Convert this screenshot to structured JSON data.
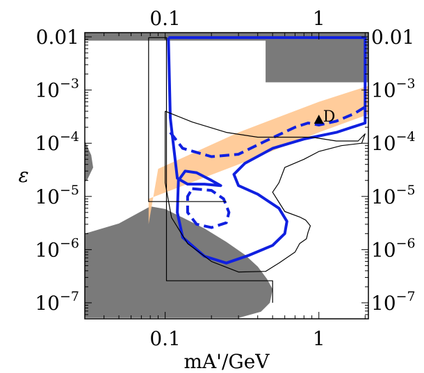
{
  "chart_data": {
    "type": "area",
    "xlabel": "mA'/GeV",
    "ylabel": "ε",
    "x_scale": "log",
    "y_scale": "log",
    "xlim": [
      0.03,
      2.1
    ],
    "ylim": [
      5e-08,
      0.012
    ],
    "x_ticks": [
      {
        "value": 0.1,
        "label": "0.1"
      },
      {
        "value": 1,
        "label": "1"
      }
    ],
    "y_ticks": [
      {
        "value": 0.01,
        "base": "0.01",
        "exp": ""
      },
      {
        "value": 0.001,
        "base": "10",
        "exp": "−3"
      },
      {
        "value": 0.0001,
        "base": "10",
        "exp": "−4"
      },
      {
        "value": 1e-05,
        "base": "10",
        "exp": "−5"
      },
      {
        "value": 1e-06,
        "base": "10",
        "exp": "−6"
      },
      {
        "value": 1e-07,
        "base": "10",
        "exp": "−7"
      }
    ],
    "colors": {
      "excluded": "#7a7a7a",
      "band": "#ffc690",
      "contour": "#1020e0",
      "thin": "#000000"
    },
    "regions": [
      {
        "kind": "excluded",
        "points": [
          [
            0.03,
            0.0085
          ],
          [
            0.03,
            0.012
          ],
          [
            2.1,
            0.012
          ],
          [
            2.1,
            0.0014
          ],
          [
            0.45,
            0.0014
          ],
          [
            0.45,
            0.0085
          ]
        ]
      },
      {
        "kind": "excluded",
        "points": [
          [
            0.03,
            2e-06
          ],
          [
            0.05,
            3.1e-06
          ],
          [
            0.08,
            6.5e-06
          ],
          [
            0.1,
            5.8e-06
          ],
          [
            0.13,
            4e-06
          ],
          [
            0.18,
            2.5e-06
          ],
          [
            0.25,
            1.4e-06
          ],
          [
            0.33,
            8e-07
          ],
          [
            0.4,
            4.8e-07
          ],
          [
            0.46,
            2.8e-07
          ],
          [
            0.5,
            1.8e-07
          ],
          [
            0.48,
            1e-07
          ],
          [
            0.42,
            6.8e-08
          ],
          [
            0.3,
            5.2e-08
          ],
          [
            0.03,
            5.2e-08
          ]
        ]
      },
      {
        "kind": "excluded",
        "points": [
          [
            0.03,
            0.00011
          ],
          [
            0.033,
            6e-05
          ],
          [
            0.034,
            3.5e-05
          ],
          [
            0.031,
            2e-05
          ],
          [
            0.03,
            1.9e-05
          ]
        ]
      }
    ],
    "band": [
      [
        0.078,
        3e-06
      ],
      [
        0.078,
        9e-06
      ],
      [
        0.3,
        4e-05
      ],
      [
        1.0,
        0.00016
      ],
      [
        2.1,
        0.00035
      ],
      [
        2.1,
        0.0012
      ],
      [
        1.0,
        0.0006
      ],
      [
        0.3,
        0.00016
      ],
      [
        0.09,
        3.3e-05
      ]
    ],
    "contours": [
      {
        "style": "solid",
        "width": "thick",
        "points": [
          [
            0.105,
            0.0097
          ],
          [
            2.0,
            0.0097
          ],
          [
            2.0,
            0.00024
          ],
          [
            1.3,
            0.00016
          ],
          [
            0.8,
            0.00012
          ],
          [
            0.5,
            8e-05
          ],
          [
            0.33,
            4.2e-05
          ],
          [
            0.28,
            2.6e-05
          ],
          [
            0.3,
            1.6e-05
          ],
          [
            0.4,
            1.1e-05
          ],
          [
            0.55,
            6e-06
          ],
          [
            0.62,
            3.4e-06
          ],
          [
            0.6,
            2e-06
          ],
          [
            0.5,
            1.2e-06
          ],
          [
            0.35,
            7.8e-07
          ],
          [
            0.25,
            5.6e-07
          ],
          [
            0.18,
            7.5e-07
          ],
          [
            0.13,
            1.7e-06
          ],
          [
            0.12,
            5e-06
          ],
          [
            0.122,
            2e-05
          ],
          [
            0.135,
            3e-05
          ],
          [
            0.16,
            2.8e-05
          ],
          [
            0.2,
            2e-05
          ],
          [
            0.23,
            1.6e-05
          ],
          [
            0.18,
            1.7e-05
          ],
          [
            0.14,
            1.7e-05
          ],
          [
            0.12,
            2.2e-05
          ],
          [
            0.108,
            0.0003
          ],
          [
            0.105,
            0.0097
          ]
        ]
      },
      {
        "style": "dashed",
        "width": "thick",
        "points": [
          [
            0.108,
            0.00016
          ],
          [
            0.13,
            8e-05
          ],
          [
            0.2,
            5.6e-05
          ],
          [
            0.3,
            6.2e-05
          ],
          [
            0.45,
            0.00011
          ],
          [
            0.7,
            0.0002
          ],
          [
            0.85,
            0.00024
          ],
          [
            1.0,
            0.00022
          ],
          [
            1.3,
            0.00026
          ],
          [
            1.7,
            0.00036
          ],
          [
            2.0,
            0.00048
          ]
        ]
      },
      {
        "style": "dashed",
        "width": "thick",
        "points": [
          [
            0.15,
            1.4e-05
          ],
          [
            0.2,
            1.3e-05
          ],
          [
            0.24,
            9e-06
          ],
          [
            0.26,
            5e-06
          ],
          [
            0.25,
            3.2e-06
          ],
          [
            0.2,
            2.6e-06
          ],
          [
            0.16,
            3e-06
          ],
          [
            0.14,
            5e-06
          ],
          [
            0.14,
            1e-05
          ],
          [
            0.15,
            1.4e-05
          ]
        ]
      },
      {
        "style": "solid",
        "width": "thin",
        "points": [
          [
            0.1,
            0.0004
          ],
          [
            0.15,
            0.00025
          ],
          [
            0.25,
            0.00016
          ],
          [
            0.4,
            0.00013
          ],
          [
            0.6,
            0.00013
          ],
          [
            0.9,
            0.00013
          ],
          [
            1.3,
            0.00011
          ],
          [
            1.8,
            0.00011
          ],
          [
            2.0,
            0.00015
          ],
          [
            1.9,
            0.0001
          ],
          [
            1.4,
            9e-05
          ],
          [
            1.0,
            7e-05
          ],
          [
            0.8,
            5e-05
          ],
          [
            0.6,
            3.5e-05
          ],
          [
            0.55,
            1.8e-05
          ],
          [
            0.5,
            1.2e-05
          ],
          [
            0.6,
            5.2e-06
          ],
          [
            0.75,
            4.1e-06
          ],
          [
            0.82,
            3.6e-06
          ],
          [
            0.88,
            2.8e-06
          ],
          [
            0.85,
            2.1e-06
          ],
          [
            0.83,
            1.6e-06
          ],
          [
            0.75,
            1.3e-06
          ],
          [
            0.7,
            9e-07
          ],
          [
            0.55,
            5.6e-07
          ],
          [
            0.45,
            3.9e-07
          ],
          [
            0.3,
            3.8e-07
          ],
          [
            0.2,
            6e-07
          ],
          [
            0.14,
            1.3e-06
          ],
          [
            0.11,
            4e-06
          ],
          [
            0.1,
            1.8e-05
          ],
          [
            0.1,
            0.0004
          ]
        ]
      },
      {
        "style": "solid",
        "width": "thin",
        "points": [
          [
            0.078,
            0.0097
          ],
          [
            0.102,
            0.0097
          ],
          [
            0.102,
            2.6e-07
          ],
          [
            0.5,
            2.6e-07
          ],
          [
            0.5,
            1e-07
          ]
        ]
      },
      {
        "style": "solid",
        "width": "thin",
        "points": [
          [
            0.078,
            0.0097
          ],
          [
            0.078,
            8e-06
          ],
          [
            0.25,
            8e-06
          ]
        ]
      }
    ],
    "markers": [
      {
        "label": "D",
        "x": 1.0,
        "y": 0.00027,
        "shape": "triangle"
      }
    ]
  }
}
